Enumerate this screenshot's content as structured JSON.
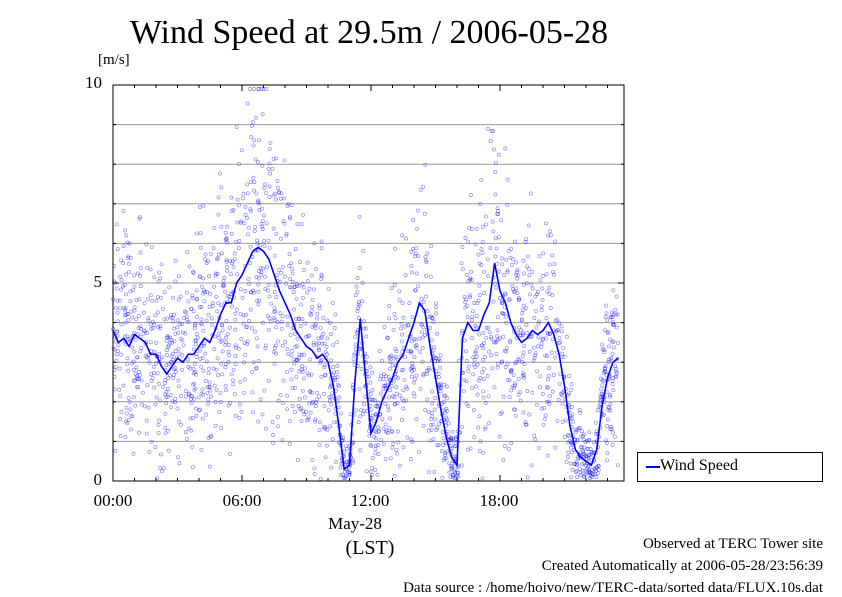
{
  "chart_data": {
    "type": "scatter",
    "title": "Wind Speed at 29.5m / 2006-05-28",
    "ylabel": "[m/s]",
    "xlabel": "(LST)",
    "date_label": "May-28",
    "ylim": [
      0,
      10
    ],
    "xlim_hours": [
      0,
      23.5
    ],
    "y_ticks": [
      "0",
      "5",
      "10"
    ],
    "x_ticks": [
      "00:00",
      "06:00",
      "12:00",
      "18:00"
    ],
    "grid": "horizontal",
    "legend_position": "right",
    "series": [
      {
        "name": "Wind Speed",
        "color": "#0000ff",
        "style": "line (smoothed) with scatter of raw samples",
        "points": [
          [
            0.0,
            3.8
          ],
          [
            0.25,
            3.5
          ],
          [
            0.5,
            3.6
          ],
          [
            0.75,
            3.4
          ],
          [
            1.0,
            3.7
          ],
          [
            1.25,
            3.6
          ],
          [
            1.5,
            3.5
          ],
          [
            1.75,
            3.2
          ],
          [
            2.0,
            3.2
          ],
          [
            2.25,
            2.9
          ],
          [
            2.5,
            2.7
          ],
          [
            2.75,
            2.9
          ],
          [
            3.0,
            3.1
          ],
          [
            3.25,
            3.0
          ],
          [
            3.5,
            3.2
          ],
          [
            3.75,
            3.2
          ],
          [
            4.0,
            3.4
          ],
          [
            4.25,
            3.6
          ],
          [
            4.5,
            3.5
          ],
          [
            4.75,
            3.8
          ],
          [
            5.0,
            4.2
          ],
          [
            5.25,
            4.5
          ],
          [
            5.5,
            4.5
          ],
          [
            5.75,
            5.0
          ],
          [
            6.0,
            5.2
          ],
          [
            6.25,
            5.5
          ],
          [
            6.5,
            5.8
          ],
          [
            6.75,
            5.9
          ],
          [
            7.0,
            5.8
          ],
          [
            7.25,
            5.6
          ],
          [
            7.5,
            5.2
          ],
          [
            7.75,
            4.8
          ],
          [
            8.0,
            4.5
          ],
          [
            8.25,
            4.2
          ],
          [
            8.5,
            3.8
          ],
          [
            8.75,
            3.6
          ],
          [
            9.0,
            3.4
          ],
          [
            9.25,
            3.3
          ],
          [
            9.5,
            3.1
          ],
          [
            9.75,
            3.2
          ],
          [
            10.0,
            3.0
          ],
          [
            10.25,
            2.4
          ],
          [
            10.5,
            1.4
          ],
          [
            10.75,
            0.3
          ],
          [
            11.0,
            0.4
          ],
          [
            11.25,
            2.5
          ],
          [
            11.5,
            4.1
          ],
          [
            11.75,
            2.6
          ],
          [
            12.0,
            1.2
          ],
          [
            12.25,
            1.5
          ],
          [
            12.5,
            2.0
          ],
          [
            12.75,
            2.3
          ],
          [
            13.0,
            2.6
          ],
          [
            13.25,
            3.0
          ],
          [
            13.5,
            3.2
          ],
          [
            13.75,
            3.6
          ],
          [
            14.0,
            4.0
          ],
          [
            14.25,
            4.5
          ],
          [
            14.5,
            4.3
          ],
          [
            14.75,
            3.4
          ],
          [
            15.0,
            2.6
          ],
          [
            15.25,
            1.8
          ],
          [
            15.5,
            1.1
          ],
          [
            15.75,
            0.6
          ],
          [
            16.0,
            0.4
          ],
          [
            16.25,
            3.6
          ],
          [
            16.5,
            4.0
          ],
          [
            16.75,
            3.8
          ],
          [
            17.0,
            3.8
          ],
          [
            17.25,
            4.2
          ],
          [
            17.5,
            4.5
          ],
          [
            17.75,
            5.5
          ],
          [
            18.0,
            4.8
          ],
          [
            18.25,
            4.5
          ],
          [
            18.5,
            4.0
          ],
          [
            18.75,
            3.7
          ],
          [
            19.0,
            3.5
          ],
          [
            19.25,
            3.6
          ],
          [
            19.5,
            3.8
          ],
          [
            19.75,
            3.7
          ],
          [
            20.0,
            3.8
          ],
          [
            20.25,
            4.0
          ],
          [
            20.5,
            3.7
          ],
          [
            20.75,
            3.2
          ],
          [
            21.0,
            2.4
          ],
          [
            21.25,
            1.4
          ],
          [
            21.5,
            0.8
          ],
          [
            21.75,
            0.6
          ],
          [
            22.0,
            0.5
          ],
          [
            22.25,
            0.4
          ],
          [
            22.5,
            0.8
          ],
          [
            22.75,
            1.9
          ],
          [
            23.0,
            2.6
          ],
          [
            23.25,
            3.0
          ],
          [
            23.5,
            3.1
          ]
        ]
      }
    ]
  },
  "notes": [
    "Observed at TERC Tower site",
    "Created Automatically at 2006-05-28/23:56:39",
    "Data source : /home/hoivo/new/TERC-data/sorted  data/FLUX.10s.dat"
  ],
  "colors": {
    "series": "#0000ff",
    "grid": "#9a9a9a",
    "axis": "#000000"
  }
}
